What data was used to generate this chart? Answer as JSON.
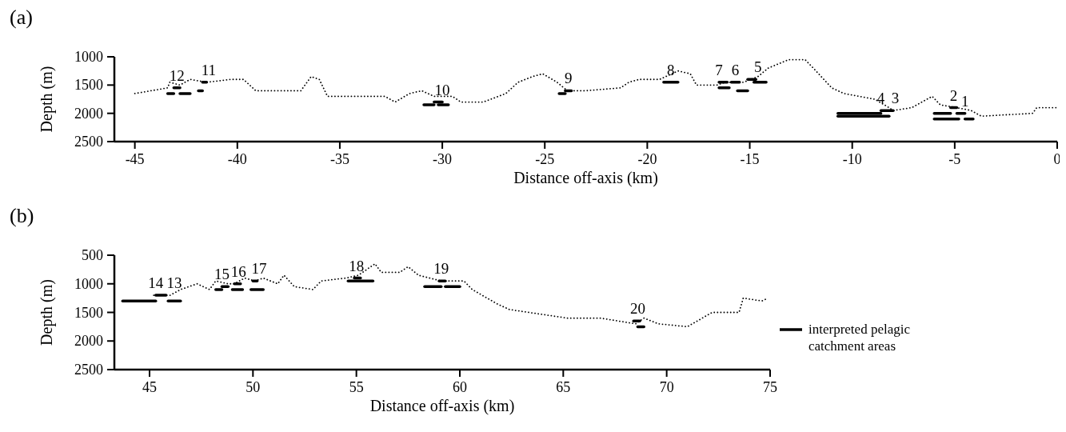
{
  "chart_data": [
    {
      "type": "line",
      "title": "(a)",
      "xlabel": "Distance off-axis (km)",
      "ylabel": "Depth (m)",
      "xlim": [
        -46,
        0
      ],
      "xticks": [
        -45,
        -40,
        -35,
        -30,
        -25,
        -20,
        -15,
        -10,
        -5,
        0
      ],
      "ylim": [
        2500,
        1000
      ],
      "yticks": [
        1000,
        1500,
        2000,
        2500
      ],
      "series": [
        {
          "type": "line",
          "line_style": "dotted",
          "color": "#000000",
          "x": [
            -45,
            -44.2,
            -43.4,
            -43.3,
            -42.8,
            -42.3,
            -41.5,
            -40.3,
            -39.7,
            -39.1,
            -38.5,
            -37.5,
            -36.9,
            -36.4,
            -36.0,
            -35.6,
            -34.7,
            -32.8,
            -32.3,
            -31.6,
            -31.0,
            -30.4,
            -29.9,
            -29.5,
            -29.1,
            -28.0,
            -26.9,
            -26.3,
            -25.6,
            -25.1,
            -24.4,
            -23.9,
            -23.0,
            -21.3,
            -20.9,
            -20.4,
            -19.4,
            -18.5,
            -17.9,
            -17.6,
            -16.6,
            -16.2,
            -15.3,
            -14.6,
            -14.1,
            -13.1,
            -12.3,
            -11.9,
            -11.0,
            -10.4,
            -8.9,
            -8.2,
            -8.0,
            -7.1,
            -6.1,
            -5.7,
            -4.9,
            -4.2,
            -3.7,
            -1.2,
            -1.0,
            0
          ],
          "values": [
            1650,
            1600,
            1550,
            1450,
            1500,
            1400,
            1450,
            1400,
            1400,
            1600,
            1600,
            1600,
            1600,
            1350,
            1400,
            1700,
            1700,
            1700,
            1800,
            1650,
            1600,
            1700,
            1700,
            1700,
            1800,
            1800,
            1650,
            1450,
            1350,
            1300,
            1450,
            1600,
            1600,
            1550,
            1450,
            1400,
            1400,
            1250,
            1300,
            1500,
            1500,
            1450,
            1450,
            1350,
            1200,
            1050,
            1050,
            1200,
            1550,
            1650,
            1750,
            1900,
            1950,
            1900,
            1700,
            1850,
            1900,
            1950,
            2050,
            2000,
            1900,
            1900
          ]
        },
        {
          "type": "line",
          "line_style": "solid",
          "color": "#000000",
          "x": [
            -43.4,
            -43.1
          ],
          "values": [
            1650,
            1650
          ]
        },
        {
          "type": "line",
          "line_style": "solid",
          "color": "#000000",
          "x": [
            -43.1,
            -42.8
          ],
          "values": [
            1550,
            1550
          ]
        },
        {
          "type": "line",
          "line_style": "solid",
          "color": "#000000",
          "x": [
            -42.8,
            -42.3
          ],
          "values": [
            1650,
            1650
          ]
        },
        {
          "type": "line",
          "line_style": "solid",
          "color": "#000000",
          "x": [
            -41.9,
            -41.7
          ],
          "values": [
            1600,
            1600
          ]
        },
        {
          "type": "line",
          "line_style": "solid",
          "color": "#000000",
          "x": [
            -41.7,
            -41.5
          ],
          "values": [
            1450,
            1450
          ]
        },
        {
          "type": "line",
          "line_style": "solid",
          "color": "#000000",
          "x": [
            -30.9,
            -30.4
          ],
          "values": [
            1850,
            1850
          ]
        },
        {
          "type": "line",
          "line_style": "solid",
          "color": "#000000",
          "x": [
            -30.4,
            -30.0
          ],
          "values": [
            1800,
            1800
          ]
        },
        {
          "type": "line",
          "line_style": "solid",
          "color": "#000000",
          "x": [
            -30.2,
            -29.7
          ],
          "values": [
            1850,
            1850
          ]
        },
        {
          "type": "line",
          "line_style": "solid",
          "color": "#000000",
          "x": [
            -24.3,
            -24.0
          ],
          "values": [
            1650,
            1650
          ]
        },
        {
          "type": "line",
          "line_style": "solid",
          "color": "#000000",
          "x": [
            -24.0,
            -23.7
          ],
          "values": [
            1600,
            1600
          ]
        },
        {
          "type": "line",
          "line_style": "solid",
          "color": "#000000",
          "x": [
            -19.2,
            -18.5
          ],
          "values": [
            1450,
            1450
          ]
        },
        {
          "type": "line",
          "line_style": "solid",
          "color": "#000000",
          "x": [
            -16.5,
            -16.1
          ],
          "values": [
            1450,
            1450
          ]
        },
        {
          "type": "line",
          "line_style": "solid",
          "color": "#000000",
          "x": [
            -16.5,
            -16.0
          ],
          "values": [
            1550,
            1550
          ]
        },
        {
          "type": "line",
          "line_style": "solid",
          "color": "#000000",
          "x": [
            -15.9,
            -15.5
          ],
          "values": [
            1450,
            1450
          ]
        },
        {
          "type": "line",
          "line_style": "solid",
          "color": "#000000",
          "x": [
            -15.6,
            -15.1
          ],
          "values": [
            1600,
            1600
          ]
        },
        {
          "type": "line",
          "line_style": "solid",
          "color": "#000000",
          "x": [
            -15.1,
            -14.7
          ],
          "values": [
            1400,
            1400
          ]
        },
        {
          "type": "line",
          "line_style": "solid",
          "color": "#000000",
          "x": [
            -14.8,
            -14.2
          ],
          "values": [
            1450,
            1450
          ]
        },
        {
          "type": "line",
          "line_style": "solid",
          "color": "#000000",
          "x": [
            -10.7,
            -8.6
          ],
          "values": [
            2000,
            2000
          ]
        },
        {
          "type": "line",
          "line_style": "solid",
          "color": "#000000",
          "x": [
            -10.7,
            -8.2
          ],
          "values": [
            2050,
            2050
          ]
        },
        {
          "type": "line",
          "line_style": "solid",
          "color": "#000000",
          "x": [
            -8.6,
            -8.0
          ],
          "values": [
            1950,
            1950
          ]
        },
        {
          "type": "line",
          "line_style": "solid",
          "color": "#000000",
          "x": [
            -6.0,
            -5.2
          ],
          "values": [
            2000,
            2000
          ]
        },
        {
          "type": "line",
          "line_style": "solid",
          "color": "#000000",
          "x": [
            -6.0,
            -4.8
          ],
          "values": [
            2100,
            2100
          ]
        },
        {
          "type": "line",
          "line_style": "solid",
          "color": "#000000",
          "x": [
            -5.2,
            -4.9
          ],
          "values": [
            1900,
            1900
          ]
        },
        {
          "type": "line",
          "line_style": "solid",
          "color": "#000000",
          "x": [
            -4.9,
            -4.5
          ],
          "values": [
            2000,
            2000
          ]
        },
        {
          "type": "line",
          "line_style": "solid",
          "color": "#000000",
          "x": [
            -4.5,
            -4.1
          ],
          "values": [
            2100,
            2100
          ]
        }
      ],
      "annotations": [
        {
          "text": "12",
          "x": -42.95,
          "y": 1550
        },
        {
          "text": "11",
          "x": -41.4,
          "y": 1450
        },
        {
          "text": "10",
          "x": -30.0,
          "y": 1800
        },
        {
          "text": "9",
          "x": -23.85,
          "y": 1600
        },
        {
          "text": "8",
          "x": -18.85,
          "y": 1450
        },
        {
          "text": "7",
          "x": -16.5,
          "y": 1450
        },
        {
          "text": "6",
          "x": -15.7,
          "y": 1450
        },
        {
          "text": "5",
          "x": -14.6,
          "y": 1400
        },
        {
          "text": "4",
          "x": -8.6,
          "y": 1950
        },
        {
          "text": "3",
          "x": -7.9,
          "y": 1950
        },
        {
          "text": "2",
          "x": -5.05,
          "y": 1900
        },
        {
          "text": "1",
          "x": -4.5,
          "y": 2000
        }
      ]
    },
    {
      "type": "line",
      "title": "(b)",
      "xlabel": "Distance off-axis (km)",
      "ylabel": "Depth (m)",
      "xlim": [
        43.3,
        75
      ],
      "xticks": [
        45,
        50,
        55,
        60,
        65,
        70,
        75
      ],
      "ylim": [
        2500,
        500
      ],
      "yticks": [
        500,
        1000,
        1500,
        2000,
        2500
      ],
      "legend": "right",
      "series": [
        {
          "type": "line",
          "line_style": "dotted",
          "color": "#000000",
          "x": [
            45.2,
            46.0,
            46.5,
            47.3,
            47.9,
            48.2,
            48.8,
            49.1,
            49.6,
            50.1,
            50.5,
            51.2,
            51.5,
            52.0,
            52.9,
            53.3,
            54.5,
            55.1,
            55.9,
            56.2,
            57.1,
            57.5,
            58.0,
            59.1,
            60.2,
            60.6,
            61.8,
            62.4,
            65.2,
            66.8,
            68.5,
            68.9,
            69.6,
            71.0,
            72.2,
            73.5,
            73.7,
            74.6,
            74.9
          ],
          "values": [
            1200,
            1200,
            1100,
            1000,
            1100,
            950,
            1000,
            1000,
            900,
            950,
            900,
            1000,
            850,
            1050,
            1100,
            950,
            900,
            850,
            650,
            800,
            800,
            700,
            850,
            950,
            950,
            1100,
            1350,
            1450,
            1600,
            1600,
            1700,
            1600,
            1700,
            1750,
            1500,
            1500,
            1250,
            1300,
            1250
          ]
        },
        {
          "type": "line",
          "line_style": "solid",
          "color": "#000000",
          "name": "interpreted pelagic catchment areas",
          "x": [
            43.7,
            45.3
          ],
          "values": [
            1300,
            1300
          ]
        },
        {
          "type": "line",
          "line_style": "solid",
          "color": "#000000",
          "x": [
            45.3,
            45.8
          ],
          "values": [
            1200,
            1200
          ]
        },
        {
          "type": "line",
          "line_style": "solid",
          "color": "#000000",
          "x": [
            45.9,
            46.5
          ],
          "values": [
            1300,
            1300
          ]
        },
        {
          "type": "line",
          "line_style": "solid",
          "color": "#000000",
          "x": [
            48.2,
            48.5
          ],
          "values": [
            1100,
            1100
          ]
        },
        {
          "type": "line",
          "line_style": "solid",
          "color": "#000000",
          "x": [
            48.5,
            48.8
          ],
          "values": [
            1050,
            1050
          ]
        },
        {
          "type": "line",
          "line_style": "solid",
          "color": "#000000",
          "x": [
            49.0,
            49.5
          ],
          "values": [
            1100,
            1100
          ]
        },
        {
          "type": "line",
          "line_style": "solid",
          "color": "#000000",
          "x": [
            49.1,
            49.4
          ],
          "values": [
            1000,
            1000
          ]
        },
        {
          "type": "line",
          "line_style": "solid",
          "color": "#000000",
          "x": [
            49.9,
            50.5
          ],
          "values": [
            1100,
            1100
          ]
        },
        {
          "type": "line",
          "line_style": "solid",
          "color": "#000000",
          "x": [
            50.0,
            50.2
          ],
          "values": [
            950,
            950
          ]
        },
        {
          "type": "line",
          "line_style": "solid",
          "color": "#000000",
          "x": [
            54.6,
            55.8
          ],
          "values": [
            950,
            950
          ]
        },
        {
          "type": "line",
          "line_style": "solid",
          "color": "#000000",
          "x": [
            54.9,
            55.2
          ],
          "values": [
            900,
            900
          ]
        },
        {
          "type": "line",
          "line_style": "solid",
          "color": "#000000",
          "x": [
            58.3,
            59.1
          ],
          "values": [
            1050,
            1050
          ]
        },
        {
          "type": "line",
          "line_style": "solid",
          "color": "#000000",
          "x": [
            59.0,
            59.3
          ],
          "values": [
            950,
            950
          ]
        },
        {
          "type": "line",
          "line_style": "solid",
          "color": "#000000",
          "x": [
            59.3,
            60.0
          ],
          "values": [
            1050,
            1050
          ]
        },
        {
          "type": "line",
          "line_style": "solid",
          "color": "#000000",
          "x": [
            68.4,
            68.7
          ],
          "values": [
            1650,
            1650
          ]
        },
        {
          "type": "line",
          "line_style": "solid",
          "color": "#000000",
          "x": [
            68.6,
            68.9
          ],
          "values": [
            1750,
            1750
          ]
        }
      ],
      "annotations": [
        {
          "text": "14",
          "x": 45.3,
          "y": 1200
        },
        {
          "text": "13",
          "x": 46.2,
          "y": 1200
        },
        {
          "text": "15",
          "x": 48.5,
          "y": 1050
        },
        {
          "text": "16",
          "x": 49.3,
          "y": 1000
        },
        {
          "text": "17",
          "x": 50.3,
          "y": 950
        },
        {
          "text": "18",
          "x": 55.0,
          "y": 900
        },
        {
          "text": "19",
          "x": 59.1,
          "y": 950
        },
        {
          "text": "20",
          "x": 68.6,
          "y": 1650
        }
      ]
    }
  ]
}
